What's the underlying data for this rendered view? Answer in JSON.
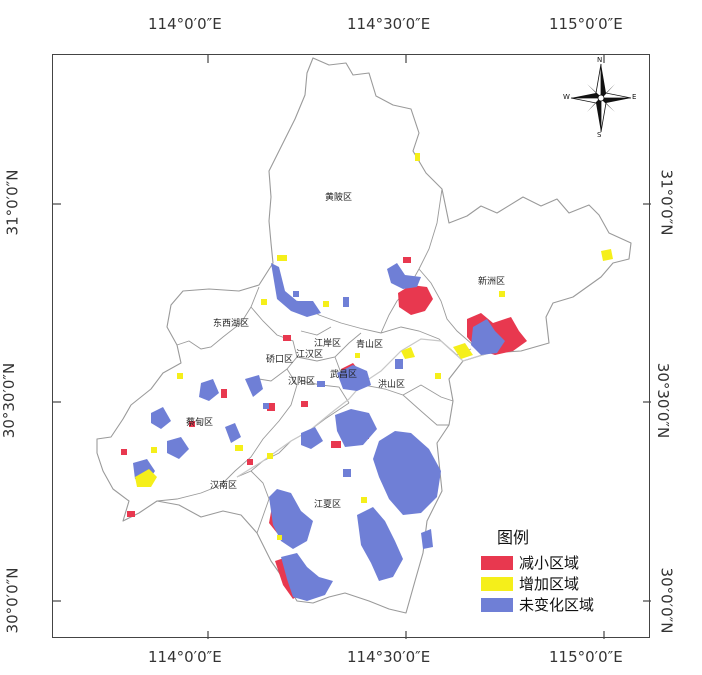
{
  "coordinates": {
    "top": [
      "114°0′0″E",
      "114°30′0″E",
      "115°0′0″E"
    ],
    "bottom": [
      "114°0′0″E",
      "114°30′0″E",
      "115°0′0″E"
    ],
    "left": [
      "31°0′0″N",
      "30°30′0″N",
      "30°0′0″N"
    ],
    "right": [
      "31°0′0″N",
      "30°30′0″N",
      "30°0′0″N"
    ]
  },
  "compass": {
    "n": "N",
    "s": "S",
    "e": "E",
    "w": "W"
  },
  "districts": {
    "huangpi": "黄陂区",
    "xinzhou": "新洲区",
    "dongxihu": "东西湖区",
    "jianghan": "江汉区",
    "jiangan": "江岸区",
    "qiaokou": "硚口区",
    "qingshan": "青山区",
    "hanyang": "汉阳区",
    "wuchang": "武昌区",
    "hongshan": "洪山区",
    "caidian": "蔡甸区",
    "hannan": "汉南区",
    "jiangxia": "江夏区"
  },
  "legend": {
    "title": "图例",
    "items": [
      {
        "label": "减小区域",
        "color": "#e8384f"
      },
      {
        "label": "增加区域",
        "color": "#f5ef1a"
      },
      {
        "label": "未变化区域",
        "color": "#6f7fd6"
      }
    ]
  },
  "colors": {
    "boundary": "#9a9a9a",
    "frame": "#444444"
  }
}
